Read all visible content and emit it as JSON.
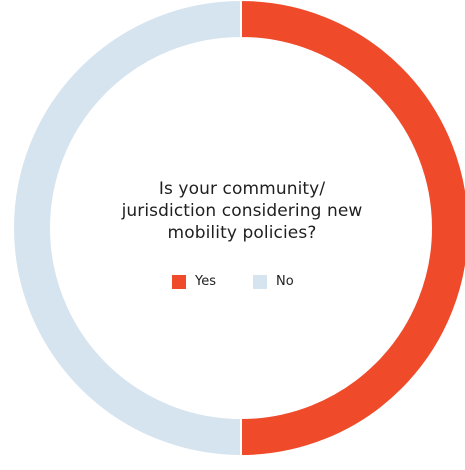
{
  "chart_data": {
    "type": "pie",
    "style": "donut",
    "title_lines": [
      "Is your community/",
      "jurisdiction considering new",
      "mobility policies?"
    ],
    "categories": [
      "Yes",
      "No"
    ],
    "values": [
      50,
      50
    ],
    "colors": [
      "#ef4a2a",
      "#d6e4ef"
    ],
    "legend_position": "center"
  }
}
